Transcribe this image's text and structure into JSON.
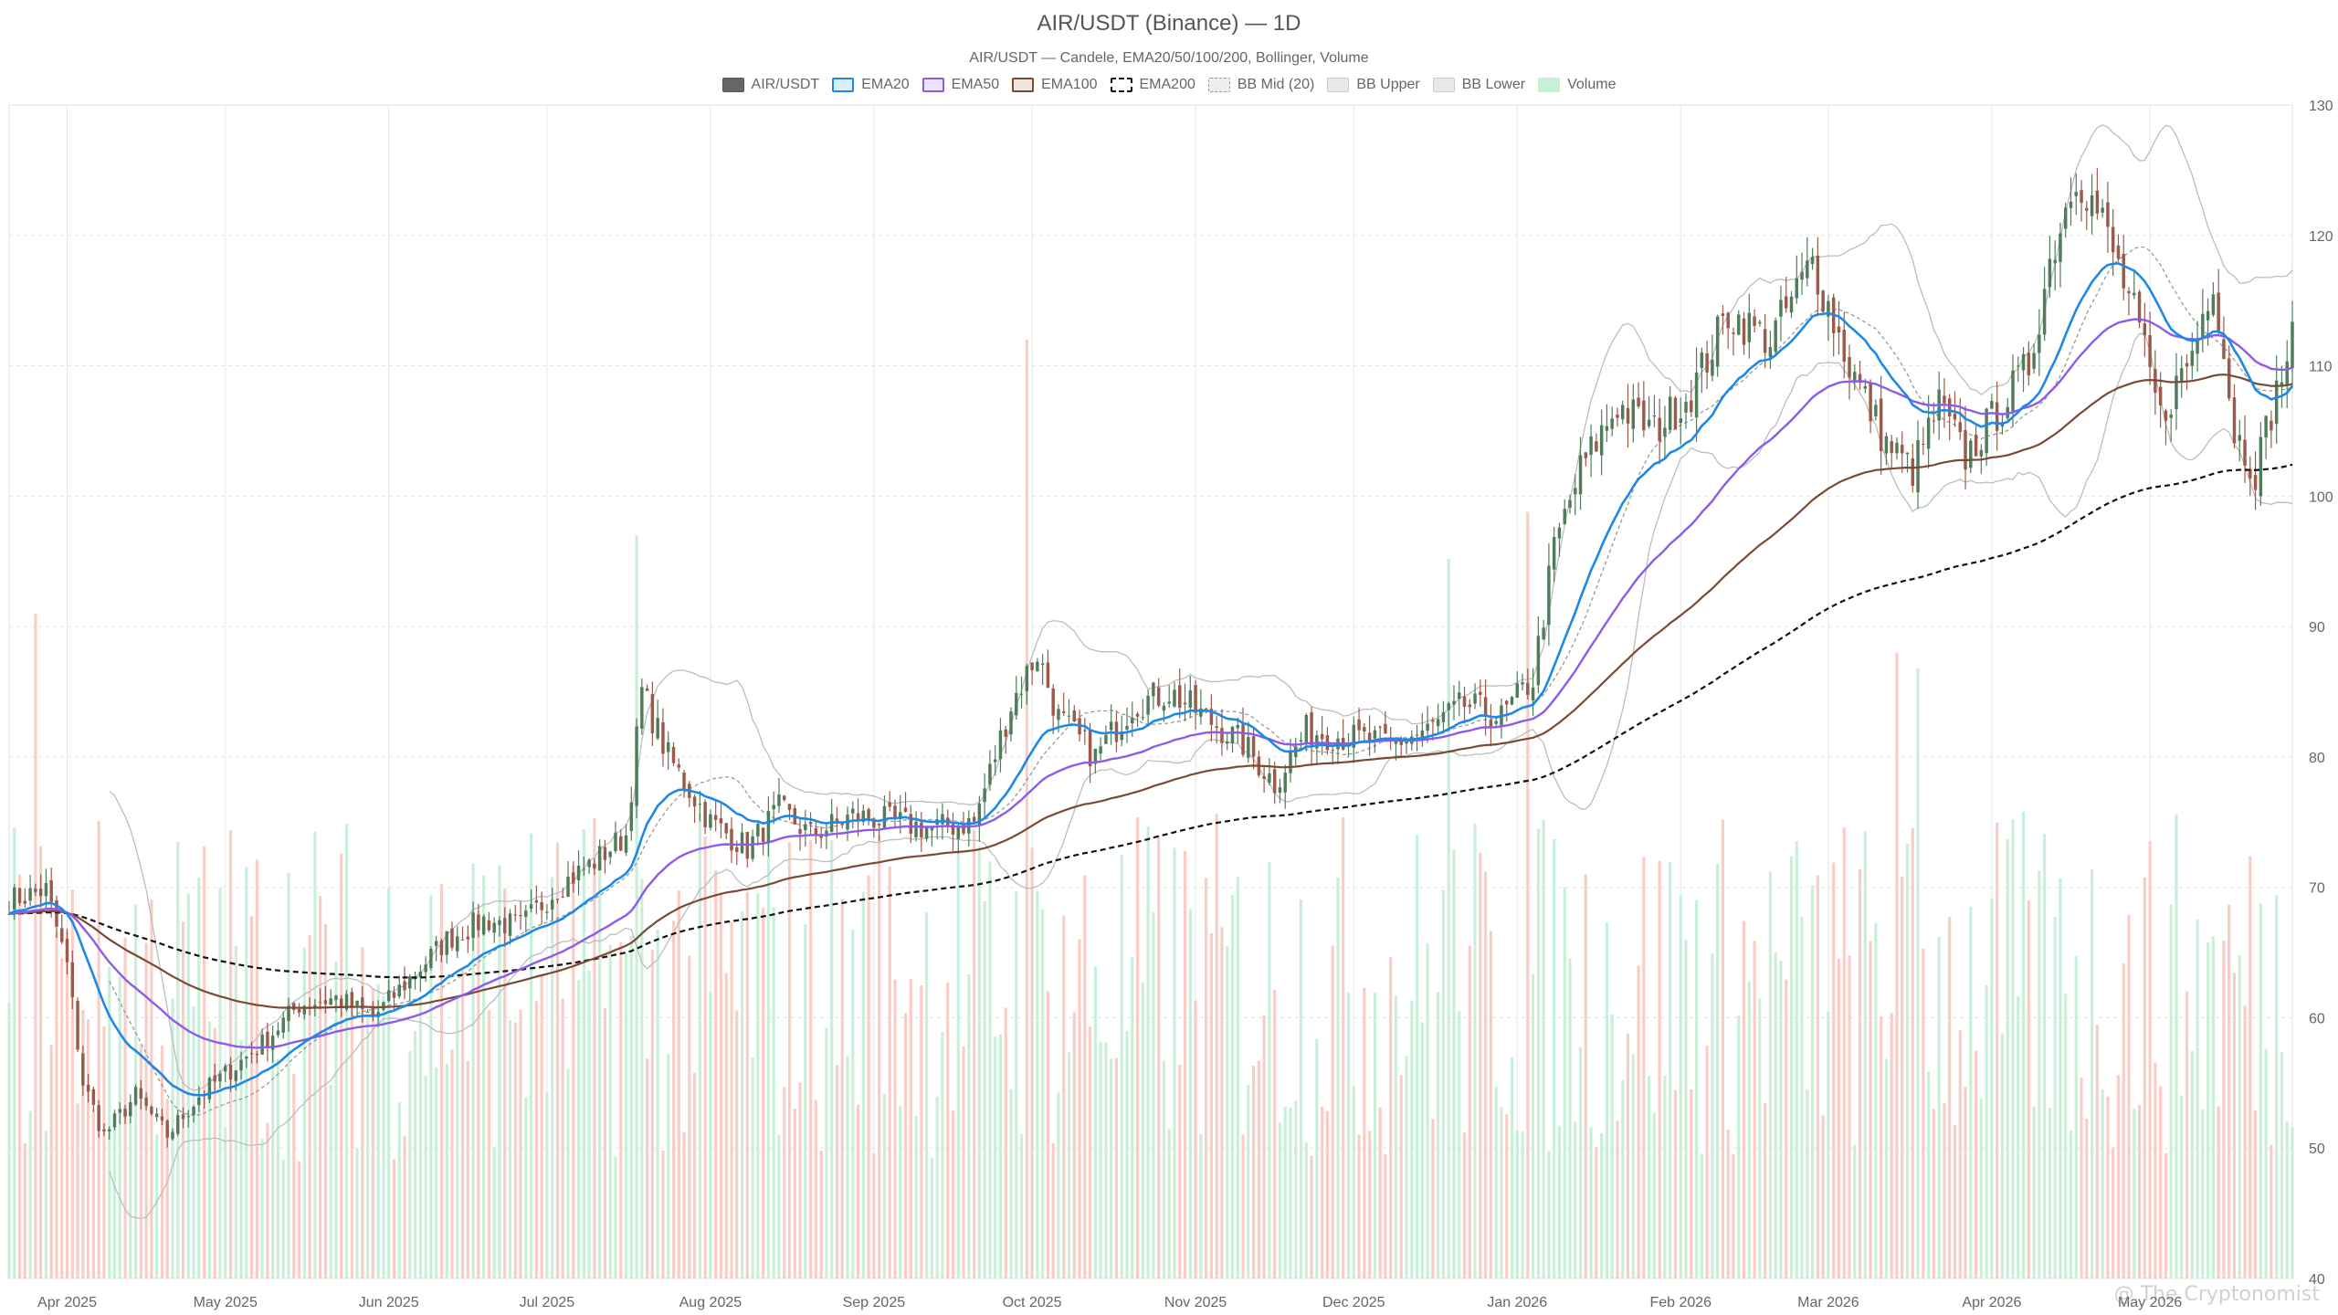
{
  "chart_data": {
    "type": "candlestick",
    "title": "AIR/USDT (Binance) — 1D",
    "subtitle": "AIR/USDT — Candele, EMA20/50/100/200, Bollinger, Volume",
    "ylim": [
      40,
      130
    ],
    "y_ticks": [
      40,
      50,
      60,
      70,
      80,
      90,
      100,
      110,
      120,
      130
    ],
    "x_range": [
      "2025-03-21",
      "2026-05-28"
    ],
    "x_ticks": [
      {
        "date": "2025-04-01",
        "label": "Apr 2025"
      },
      {
        "date": "2025-05-01",
        "label": "May 2025"
      },
      {
        "date": "2025-06-01",
        "label": "Jun 2025"
      },
      {
        "date": "2025-07-01",
        "label": "Jul 2025"
      },
      {
        "date": "2025-08-01",
        "label": "Aug 2025"
      },
      {
        "date": "2025-09-01",
        "label": "Sep 2025"
      },
      {
        "date": "2025-10-01",
        "label": "Oct 2025"
      },
      {
        "date": "2025-11-01",
        "label": "Nov 2025"
      },
      {
        "date": "2025-12-01",
        "label": "Dec 2025"
      },
      {
        "date": "2026-01-01",
        "label": "Jan 2026"
      },
      {
        "date": "2026-02-01",
        "label": "Feb 2026"
      },
      {
        "date": "2026-03-01",
        "label": "Mar 2026"
      },
      {
        "date": "2026-04-01",
        "label": "Apr 2026"
      },
      {
        "date": "2026-05-01",
        "label": "May 2026"
      }
    ],
    "grid": true,
    "legend_position": "top-center",
    "colors": {
      "up": "#4f7d5c",
      "down": "#9b5a4a",
      "ema20": "#1e88e5",
      "ema50": "#8e5be8",
      "ema100": "#7b4a35",
      "ema200": "#111111",
      "bb": "#bdbdbd",
      "vol_up": "#c9efd9",
      "vol_down": "#f9cdc6"
    },
    "legend": [
      {
        "key": "candles",
        "label": "AIR/USDT",
        "style": "solid-dark"
      },
      {
        "key": "ema20",
        "label": "EMA20",
        "style": "ema20"
      },
      {
        "key": "ema50",
        "label": "EMA50",
        "style": "ema50"
      },
      {
        "key": "ema100",
        "label": "EMA100",
        "style": "ema100"
      },
      {
        "key": "ema200",
        "label": "EMA200",
        "style": "ema200"
      },
      {
        "key": "bb_mid",
        "label": "BB Mid (20)",
        "style": "bbmid"
      },
      {
        "key": "bb_upper",
        "label": "BB Upper",
        "style": "bb"
      },
      {
        "key": "bb_lower",
        "label": "BB Lower",
        "style": "bb"
      },
      {
        "key": "volume",
        "label": "Volume",
        "style": "vol"
      }
    ],
    "close_anchors": [
      [
        "2025-03-21",
        69
      ],
      [
        "2025-03-28",
        69.8
      ],
      [
        "2025-04-01",
        64
      ],
      [
        "2025-04-04",
        55
      ],
      [
        "2025-04-08",
        51
      ],
      [
        "2025-04-14",
        54
      ],
      [
        "2025-04-20",
        51
      ],
      [
        "2025-04-26",
        54
      ],
      [
        "2025-05-02",
        56
      ],
      [
        "2025-05-08",
        58
      ],
      [
        "2025-05-15",
        61
      ],
      [
        "2025-05-22",
        61.5
      ],
      [
        "2025-05-29",
        60
      ],
      [
        "2025-06-05",
        63
      ],
      [
        "2025-06-12",
        66
      ],
      [
        "2025-06-19",
        67.5
      ],
      [
        "2025-06-26",
        67
      ],
      [
        "2025-07-03",
        70
      ],
      [
        "2025-07-10",
        72
      ],
      [
        "2025-07-16",
        74
      ],
      [
        "2025-07-19",
        85
      ],
      [
        "2025-07-24",
        80
      ],
      [
        "2025-08-01",
        75
      ],
      [
        "2025-08-08",
        73
      ],
      [
        "2025-08-14",
        76
      ],
      [
        "2025-08-20",
        74
      ],
      [
        "2025-08-28",
        75.5
      ],
      [
        "2025-09-05",
        75
      ],
      [
        "2025-09-12",
        74.5
      ],
      [
        "2025-09-20",
        75
      ],
      [
        "2025-09-27",
        84
      ],
      [
        "2025-10-02",
        88
      ],
      [
        "2025-10-06",
        83
      ],
      [
        "2025-10-13",
        80
      ],
      [
        "2025-10-20",
        84
      ],
      [
        "2025-10-27",
        85
      ],
      [
        "2025-11-03",
        83
      ],
      [
        "2025-11-10",
        81
      ],
      [
        "2025-11-16",
        78
      ],
      [
        "2025-11-22",
        82
      ],
      [
        "2025-11-30",
        81.5
      ],
      [
        "2025-12-08",
        81
      ],
      [
        "2025-12-15",
        82
      ],
      [
        "2025-12-22",
        84
      ],
      [
        "2025-12-29",
        83
      ],
      [
        "2026-01-04",
        86
      ],
      [
        "2026-01-08",
        96
      ],
      [
        "2026-01-13",
        102
      ],
      [
        "2026-01-20",
        107
      ],
      [
        "2026-01-27",
        105
      ],
      [
        "2026-02-03",
        108
      ],
      [
        "2026-02-10",
        114
      ],
      [
        "2026-02-18",
        112
      ],
      [
        "2026-02-26",
        118
      ],
      [
        "2026-03-05",
        110
      ],
      [
        "2026-03-12",
        104
      ],
      [
        "2026-03-17",
        102
      ],
      [
        "2026-03-22",
        107
      ],
      [
        "2026-03-27",
        103
      ],
      [
        "2026-04-03",
        107
      ],
      [
        "2026-04-08",
        110
      ],
      [
        "2026-04-12",
        118
      ],
      [
        "2026-04-17",
        125
      ],
      [
        "2026-04-22",
        121
      ],
      [
        "2026-04-28",
        114
      ],
      [
        "2026-05-03",
        106
      ],
      [
        "2026-05-09",
        111
      ],
      [
        "2026-05-13",
        117
      ],
      [
        "2026-05-17",
        105
      ],
      [
        "2026-05-21",
        102
      ],
      [
        "2026-05-25",
        108
      ],
      [
        "2026-05-28",
        112
      ]
    ],
    "volume_scale": [
      0,
      150
    ],
    "volume_spikes": [
      [
        "2025-03-26",
        85,
        "down"
      ],
      [
        "2025-07-18",
        95,
        "up"
      ],
      [
        "2025-09-30",
        120,
        "down"
      ],
      [
        "2025-12-19",
        92,
        "up"
      ],
      [
        "2026-01-03",
        98,
        "down"
      ],
      [
        "2026-03-14",
        80,
        "down"
      ],
      [
        "2026-03-18",
        78,
        "up"
      ]
    ]
  },
  "watermark": "@ The Cryptonomist"
}
